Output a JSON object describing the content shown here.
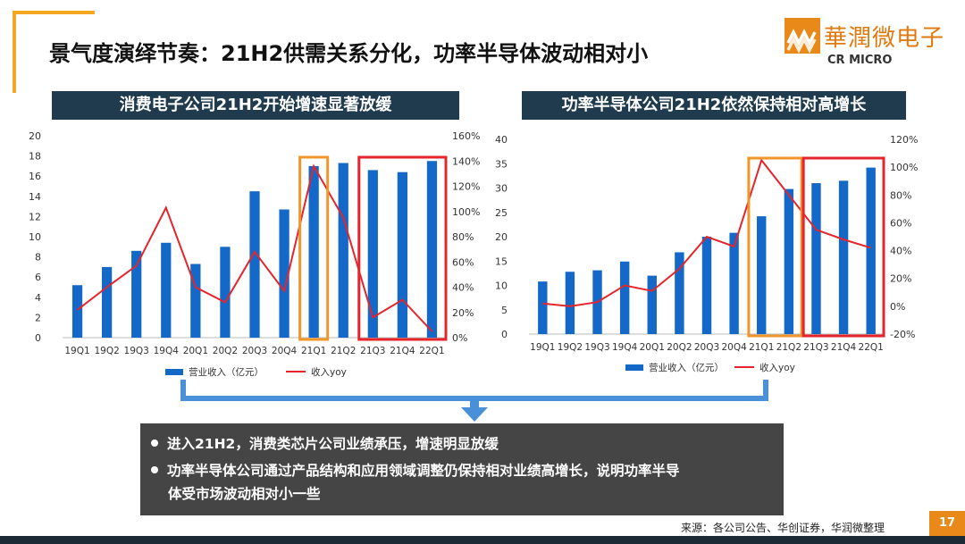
{
  "title": "景气度演绎节奏：21H2供需关系分化，功率半导体波动相对小",
  "logo": {
    "name_cn": "華潤微电子",
    "name_en": "CR MICRO"
  },
  "colors": {
    "bar": "#1469c8",
    "line": "#e5242b",
    "highlight_orange": "#f0962a",
    "highlight_red": "#e5242b",
    "banner": "#1f3b4d",
    "accent": "#f5a623"
  },
  "chart_data": [
    {
      "type": "bar",
      "title": "消费电子公司21H2开始增速显著放缓",
      "categories": [
        "19Q1",
        "19Q2",
        "19Q3",
        "19Q4",
        "20Q1",
        "20Q2",
        "20Q3",
        "20Q4",
        "21Q1",
        "21Q2",
        "21Q3",
        "21Q4",
        "22Q1"
      ],
      "series": [
        {
          "name": "营业收入（亿元）",
          "type": "bar",
          "axis": "left",
          "values": [
            5.2,
            7.0,
            8.6,
            9.4,
            7.3,
            9.0,
            14.5,
            12.7,
            17.0,
            17.3,
            16.6,
            16.4,
            17.5
          ]
        },
        {
          "name": "收入yoy",
          "type": "line",
          "axis": "right",
          "values": [
            22,
            40,
            57,
            103,
            40,
            28,
            68,
            37,
            136,
            95,
            16,
            30,
            5
          ]
        }
      ],
      "ylim_left": [
        0,
        20
      ],
      "yticks_left": [
        "0",
        "2",
        "4",
        "6",
        "8",
        "10",
        "12",
        "14",
        "16",
        "18",
        "20"
      ],
      "ylim_right": [
        0,
        160
      ],
      "yticks_right": [
        "0%",
        "20%",
        "40%",
        "60%",
        "80%",
        "100%",
        "120%",
        "140%",
        "160%"
      ],
      "highlights": [
        {
          "color": "orange",
          "from": "21Q1",
          "to": "21Q1"
        },
        {
          "color": "red",
          "from": "21Q3",
          "to": "22Q1"
        }
      ],
      "legend": [
        "营业收入（亿元）",
        "收入yoy"
      ],
      "legend_position": "bottom"
    },
    {
      "type": "bar",
      "title": "功率半导体公司21H2依然保持相对高增长",
      "categories": [
        "19Q1",
        "19Q2",
        "19Q3",
        "19Q4",
        "20Q1",
        "20Q2",
        "20Q3",
        "20Q4",
        "21Q1",
        "21Q2",
        "21Q3",
        "21Q4",
        "22Q1"
      ],
      "series": [
        {
          "name": "营业收入（亿元）",
          "type": "bar",
          "axis": "left",
          "values": [
            10.8,
            12.8,
            13.1,
            14.9,
            12.0,
            16.8,
            20.0,
            20.8,
            24.2,
            29.8,
            31.0,
            31.5,
            34.2
          ]
        },
        {
          "name": "收入yoy",
          "type": "line",
          "axis": "right",
          "values": [
            2,
            0,
            3,
            15,
            11,
            27,
            50,
            43,
            105,
            80,
            55,
            48,
            42
          ]
        }
      ],
      "ylim_left": [
        0,
        40
      ],
      "yticks_left": [
        "0",
        "5",
        "10",
        "15",
        "20",
        "25",
        "30",
        "35",
        "40"
      ],
      "ylim_right": [
        -20,
        120
      ],
      "yticks_right": [
        "-20%",
        "0%",
        "20%",
        "40%",
        "60%",
        "80%",
        "100%",
        "120%"
      ],
      "highlights": [
        {
          "color": "orange",
          "from": "21Q1",
          "to": "21Q2"
        },
        {
          "color": "red",
          "from": "21Q3",
          "to": "22Q1"
        }
      ],
      "legend": [
        "营业收入（亿元）",
        "收入yoy"
      ],
      "legend_position": "bottom"
    }
  ],
  "summary": {
    "bullets": [
      "进入21H2，消费类芯片公司业绩承压，增速明显放缓",
      "功率半导体公司通过产品结构和应用领域调整仍保持相对业绩高增长，说明功率半导",
      "体受市场波动相对小一些"
    ]
  },
  "source": "来源：各公司公告、华创证券，华润微整理",
  "page_number": "17"
}
